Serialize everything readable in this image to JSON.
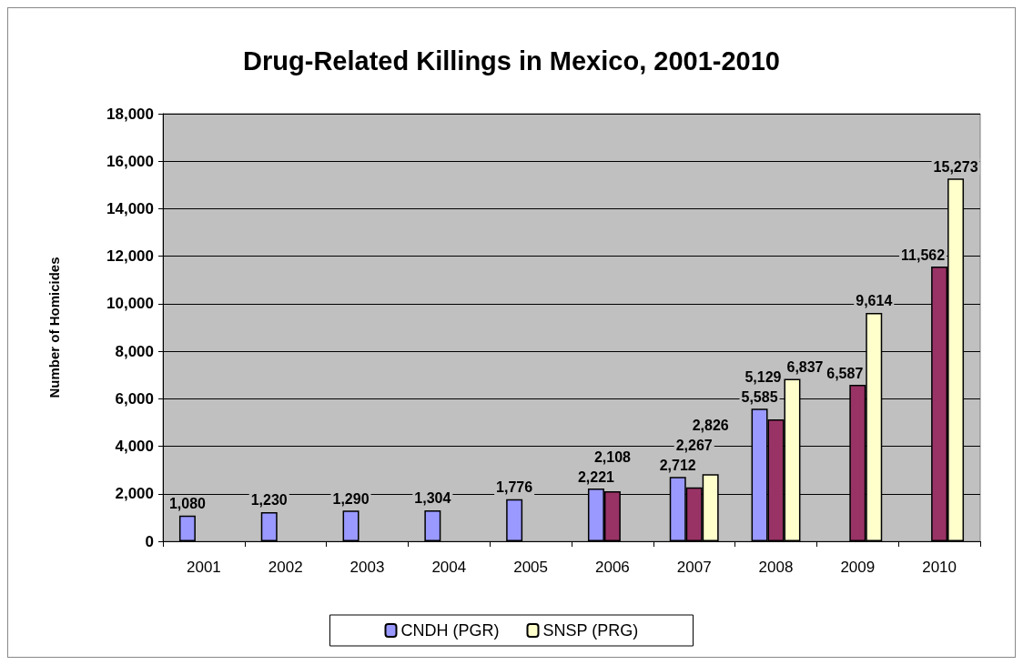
{
  "chart_data": {
    "type": "bar",
    "title": "Drug-Related Killings in Mexico, 2001-2010",
    "ylabel": "Number of Homicides",
    "categories": [
      "2001",
      "2002",
      "2003",
      "2004",
      "2005",
      "2006",
      "2007",
      "2008",
      "2009",
      "2010"
    ],
    "series": [
      {
        "name": "CNDH (PGR)",
        "color": "#9999ff",
        "values": [
          1080,
          1230,
          1290,
          1304,
          1776,
          2221,
          2712,
          5585,
          null,
          null
        ],
        "value_labels": [
          "1,080",
          "1,230",
          "1,290",
          "1,304",
          "1,776",
          "2,221",
          "2,712",
          "5,585",
          null,
          null
        ]
      },
      {
        "color": "#993366",
        "values": [
          null,
          null,
          null,
          null,
          null,
          2108,
          2267,
          5129,
          6587,
          11562
        ],
        "value_labels": [
          null,
          null,
          null,
          null,
          null,
          "2,108",
          "2,267",
          "5,129",
          "6,587",
          "11,562"
        ]
      },
      {
        "name": "SNSP (PRG)",
        "color": "#ffffcc",
        "values": [
          null,
          null,
          null,
          null,
          null,
          null,
          2826,
          6837,
          9614,
          15273
        ],
        "value_labels": [
          null,
          null,
          null,
          null,
          null,
          null,
          "2,826",
          "6,837",
          "9,614",
          "15,273"
        ]
      }
    ],
    "ylim": [
      0,
      18000
    ],
    "yticks": [
      {
        "value": 0,
        "label": "0"
      },
      {
        "value": 2000,
        "label": "2,000"
      },
      {
        "value": 4000,
        "label": "4,000"
      },
      {
        "value": 6000,
        "label": "6,000"
      },
      {
        "value": 8000,
        "label": "8,000"
      },
      {
        "value": 10000,
        "label": "10,000"
      },
      {
        "value": 12000,
        "label": "12,000"
      },
      {
        "value": 14000,
        "label": "14,000"
      },
      {
        "value": 16000,
        "label": "16,000"
      },
      {
        "value": 18000,
        "label": "18,000"
      }
    ],
    "grid": "y",
    "legend": "bottom"
  }
}
